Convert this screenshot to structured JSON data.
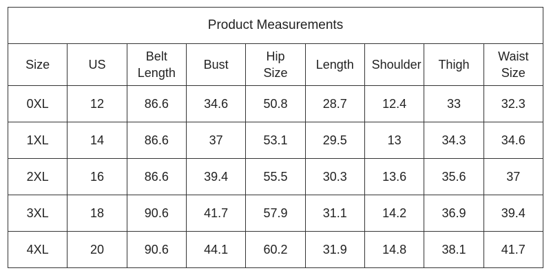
{
  "table": {
    "title": "Product Measurements",
    "header": [
      "Size",
      "US",
      "Belt Length",
      "Bust",
      "Hip Size",
      "Length",
      "Shoulder",
      "Thigh",
      "Waist Size"
    ],
    "rows": [
      [
        "0XL",
        12,
        86.6,
        34.6,
        50.8,
        28.7,
        12.4,
        33,
        32.3
      ],
      [
        "1XL",
        14,
        86.6,
        37,
        53.1,
        29.5,
        13,
        34.3,
        34.6
      ],
      [
        "2XL",
        16,
        86.6,
        39.4,
        55.5,
        30.3,
        13.6,
        35.6,
        37
      ],
      [
        "3XL",
        18,
        90.6,
        41.7,
        57.9,
        31.1,
        14.2,
        36.9,
        39.4
      ],
      [
        "4XL",
        20,
        90.6,
        44.1,
        60.2,
        31.9,
        14.8,
        38.1,
        41.7
      ]
    ]
  }
}
